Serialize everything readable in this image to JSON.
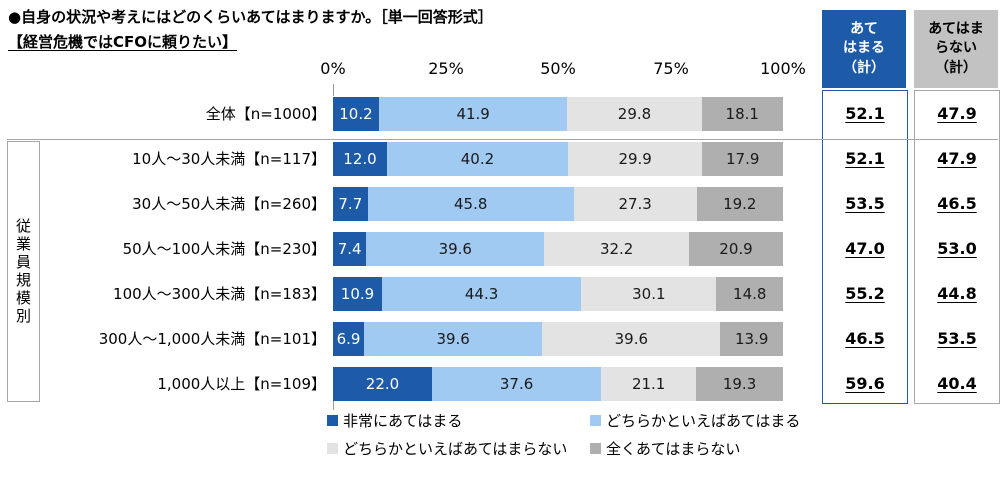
{
  "header": {
    "question": "●自身の状況や考えにはどのくらいあてはまりますか。［単一回答形式］",
    "statement": "【経営危機ではCFOに頼りたい】"
  },
  "chart_data": {
    "type": "bar",
    "stacked": true,
    "orientation": "horizontal",
    "unit": "%",
    "xlim": [
      0,
      100
    ],
    "x_ticks": [
      "0%",
      "25%",
      "50%",
      "75%",
      "100%"
    ],
    "grid": false,
    "legend_position": "bottom",
    "group_axis_label": "従業員規模別",
    "categories": [
      "全体【n=1000】",
      "10人～30人未満【n=117】",
      "30人～50人未満【n=260】",
      "50人～100人未満【n=230】",
      "100人～300人未満【n=183】",
      "300人～1,000人未満【n=101】",
      "1,000人以上【n=109】"
    ],
    "series": [
      {
        "name": "非常にあてはまる",
        "color": "#1D5BA9",
        "values": [
          10.2,
          12.0,
          7.7,
          7.4,
          10.9,
          6.9,
          22.0
        ]
      },
      {
        "name": "どちらかといえばあてはまる",
        "color": "#A0CAF1",
        "values": [
          41.9,
          40.2,
          45.8,
          39.6,
          44.3,
          39.6,
          37.6
        ]
      },
      {
        "name": "どちらかといえばあてはまらない",
        "color": "#E3E3E3",
        "values": [
          29.8,
          29.9,
          27.3,
          32.2,
          30.1,
          39.6,
          21.1
        ]
      },
      {
        "name": "全くあてはまらない",
        "color": "#AFAFAF",
        "values": [
          18.1,
          17.9,
          19.2,
          20.9,
          14.8,
          13.9,
          19.3
        ]
      }
    ],
    "summary": {
      "agree_total": {
        "label": "あて\nはまる\n（計）",
        "header_bg": "#1D5BA9",
        "header_text_color": "#FFFFFF",
        "values": [
          52.1,
          52.1,
          53.5,
          47.0,
          55.2,
          46.5,
          59.6
        ]
      },
      "disagree_total": {
        "label": "あてはま\nらない\n（計）",
        "header_bg": "#C2C2C2",
        "header_text_color": "#000000",
        "values": [
          47.9,
          47.9,
          46.5,
          53.0,
          44.8,
          53.5,
          40.4
        ]
      }
    }
  }
}
